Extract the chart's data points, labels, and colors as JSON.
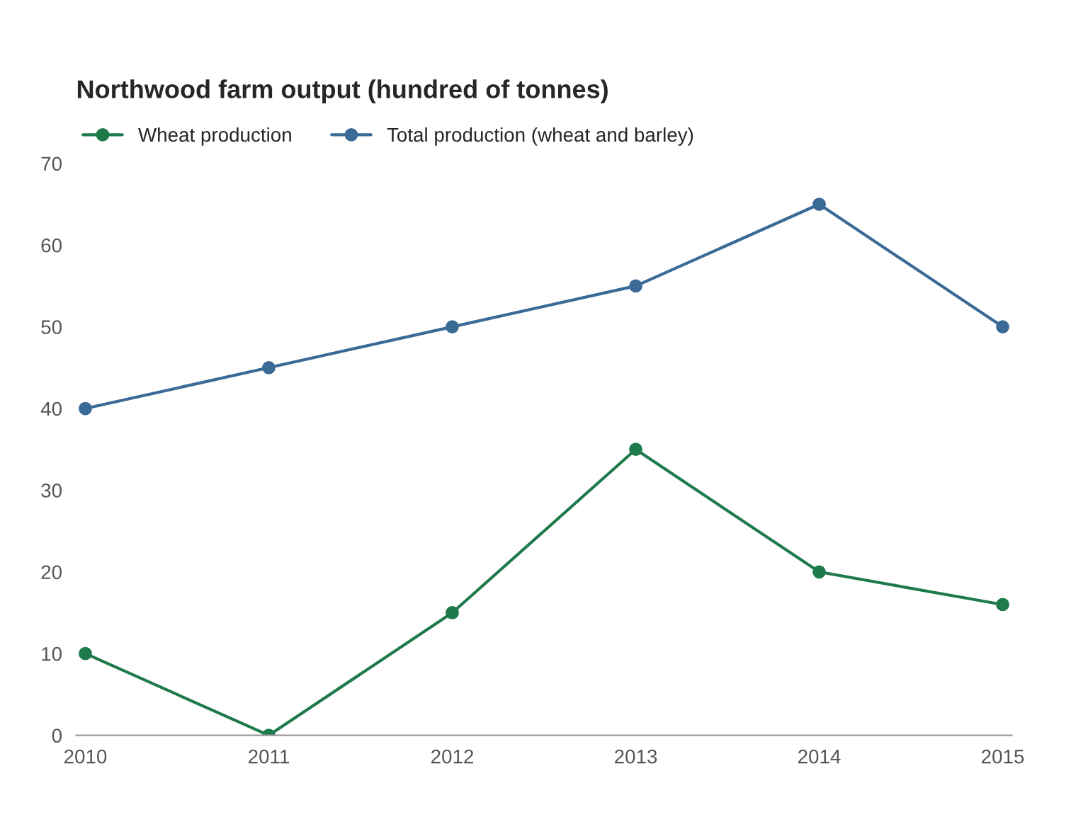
{
  "chart_data": {
    "type": "line",
    "title": "Northwood farm output (hundred of tonnes)",
    "categories": [
      "2010",
      "2011",
      "2012",
      "2013",
      "2014",
      "2015"
    ],
    "series": [
      {
        "name": "Wheat production",
        "color": "#1e7a4a",
        "values": [
          10,
          0,
          15,
          35,
          20,
          16
        ]
      },
      {
        "name": "Total production (wheat and barley)",
        "color": "#3a6a96",
        "values": [
          40,
          45,
          50,
          55,
          65,
          50
        ]
      }
    ],
    "ylim": [
      0,
      70
    ],
    "yticks": [
      0,
      10,
      20,
      30,
      40,
      50,
      60,
      70
    ],
    "marker": "circle",
    "legend": "top left",
    "line_style": "solid"
  }
}
